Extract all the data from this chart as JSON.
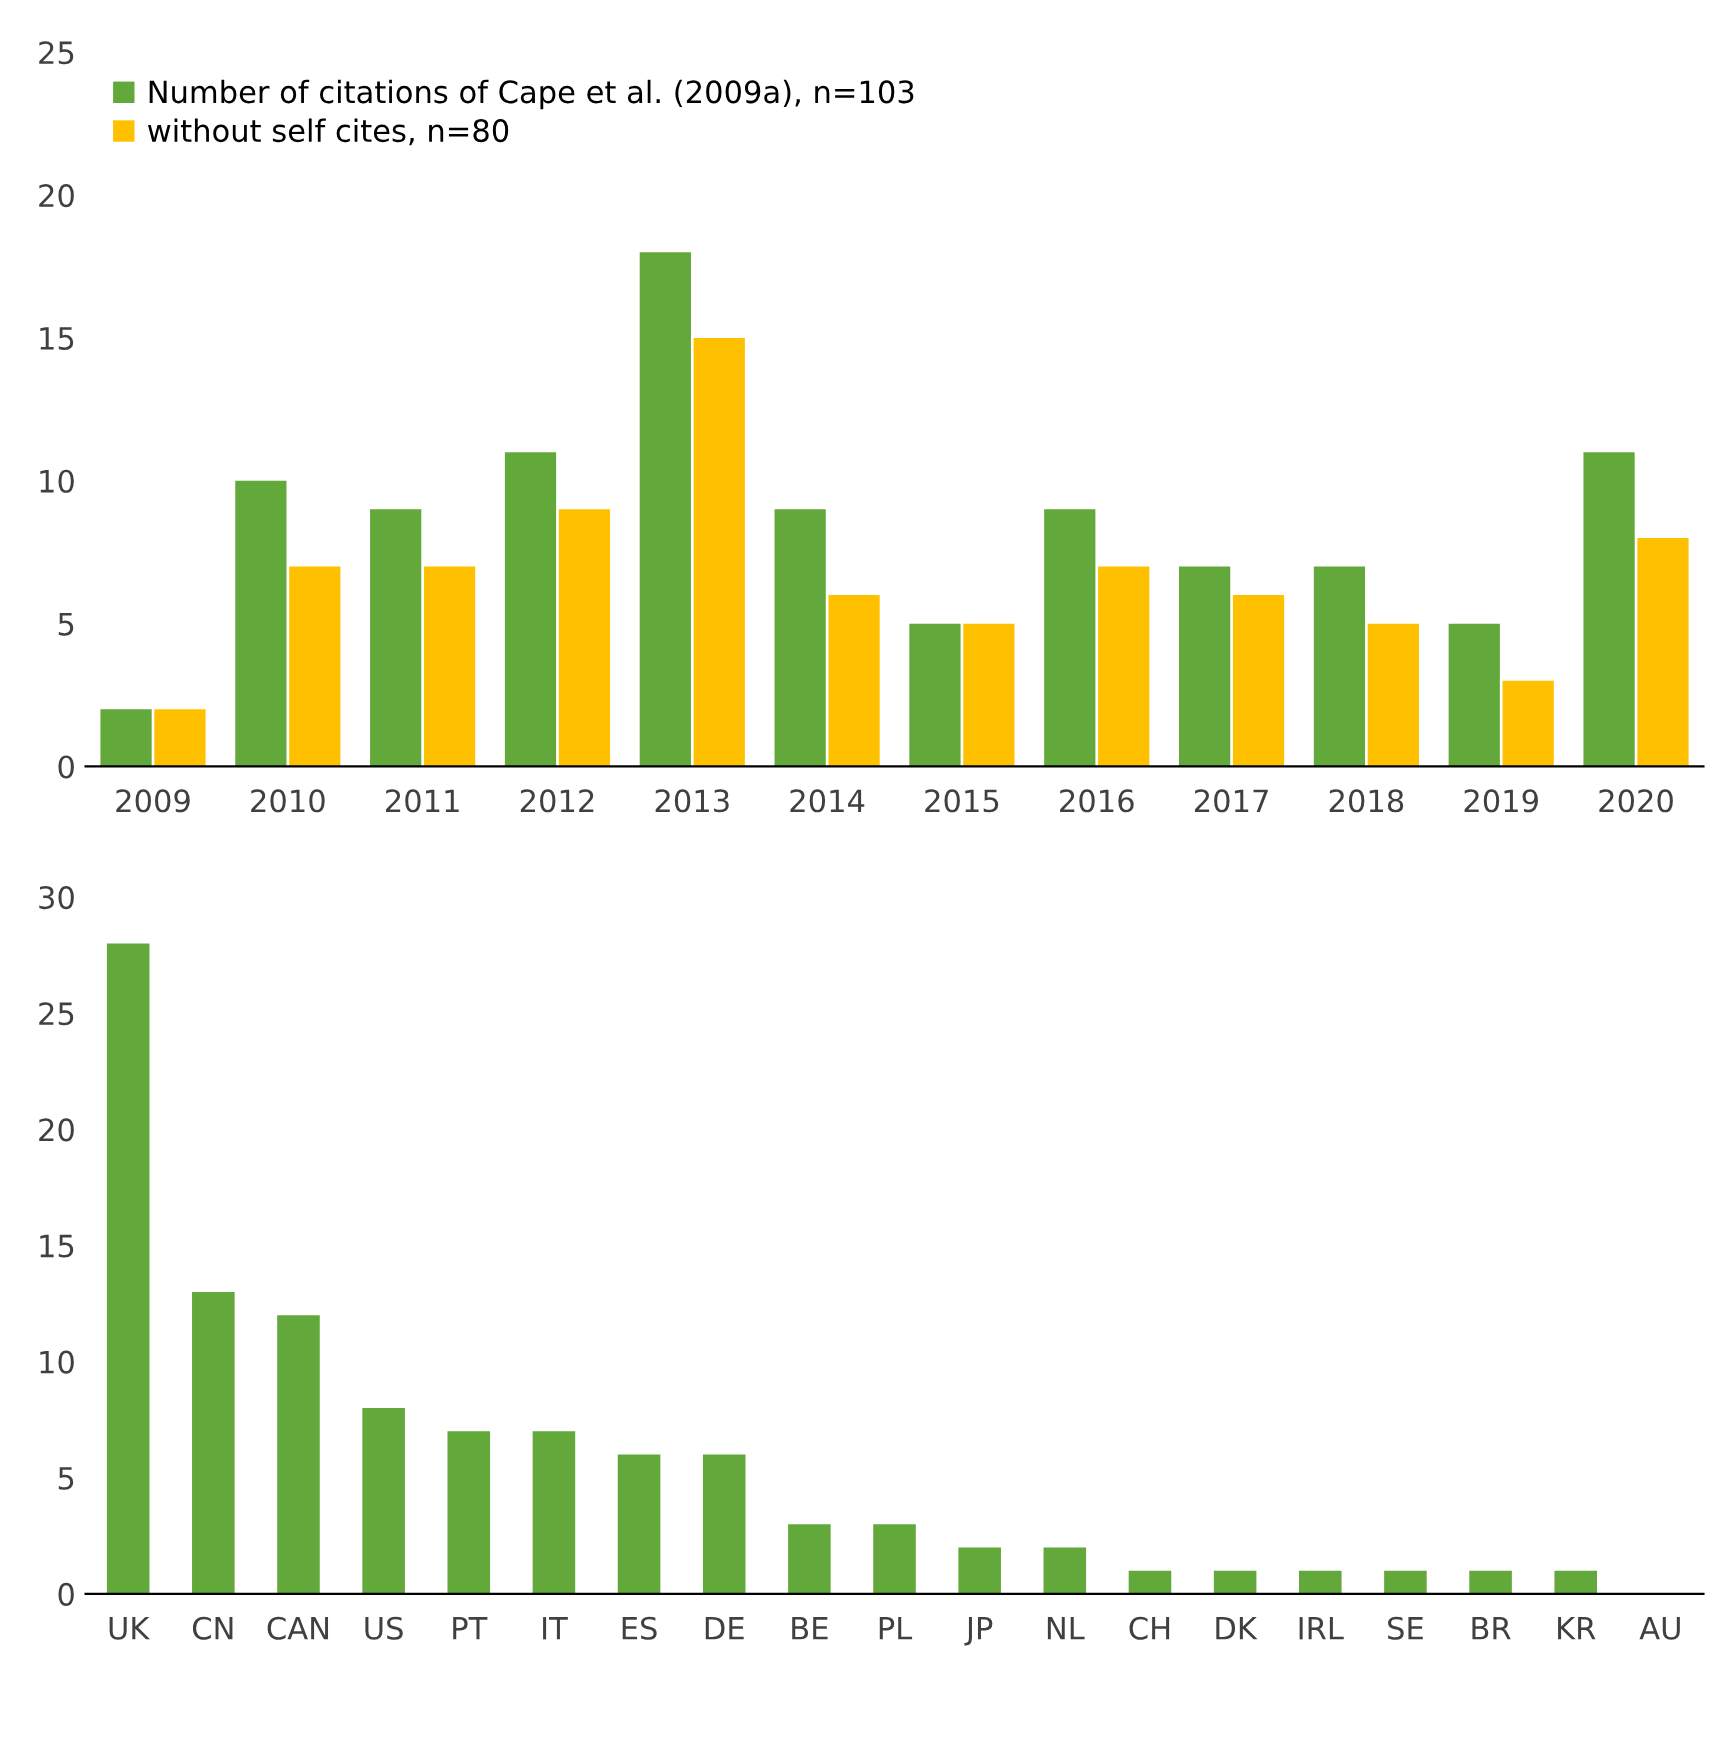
{
  "chart_data": [
    {
      "type": "bar",
      "categories": [
        "2009",
        "2010",
        "2011",
        "2012",
        "2013",
        "2014",
        "2015",
        "2016",
        "2017",
        "2018",
        "2019",
        "2020"
      ],
      "series": [
        {
          "name": "Number of citations of Cape et al. (2009a), n=103",
          "color": "#62a83a",
          "values": [
            2,
            10,
            9,
            11,
            18,
            9,
            5,
            9,
            7,
            7,
            5,
            11
          ]
        },
        {
          "name": "without self cites, n=80",
          "color": "#ffc000",
          "values": [
            2,
            7,
            7,
            9,
            15,
            6,
            5,
            7,
            6,
            5,
            3,
            8
          ]
        }
      ],
      "ylim": [
        0,
        25
      ],
      "yticks": [
        0,
        5,
        10,
        15,
        20,
        25
      ],
      "grid": false,
      "legend": "top left"
    },
    {
      "type": "bar",
      "categories": [
        "UK",
        "CN",
        "CAN",
        "US",
        "PT",
        "IT",
        "ES",
        "DE",
        "BE",
        "PL",
        "JP",
        "NL",
        "CH",
        "DK",
        "IRL",
        "SE",
        "BR",
        "KR",
        "AU"
      ],
      "series": [
        {
          "color": "#62a83a",
          "values": [
            28,
            13,
            12,
            8,
            7,
            7,
            6,
            6,
            3,
            3,
            2,
            2,
            1,
            1,
            1,
            1,
            1,
            1,
            0
          ]
        }
      ],
      "ylim": [
        0,
        30
      ],
      "yticks": [
        0,
        5,
        10,
        15,
        20,
        25,
        30
      ],
      "grid": false,
      "legend": false
    }
  ]
}
